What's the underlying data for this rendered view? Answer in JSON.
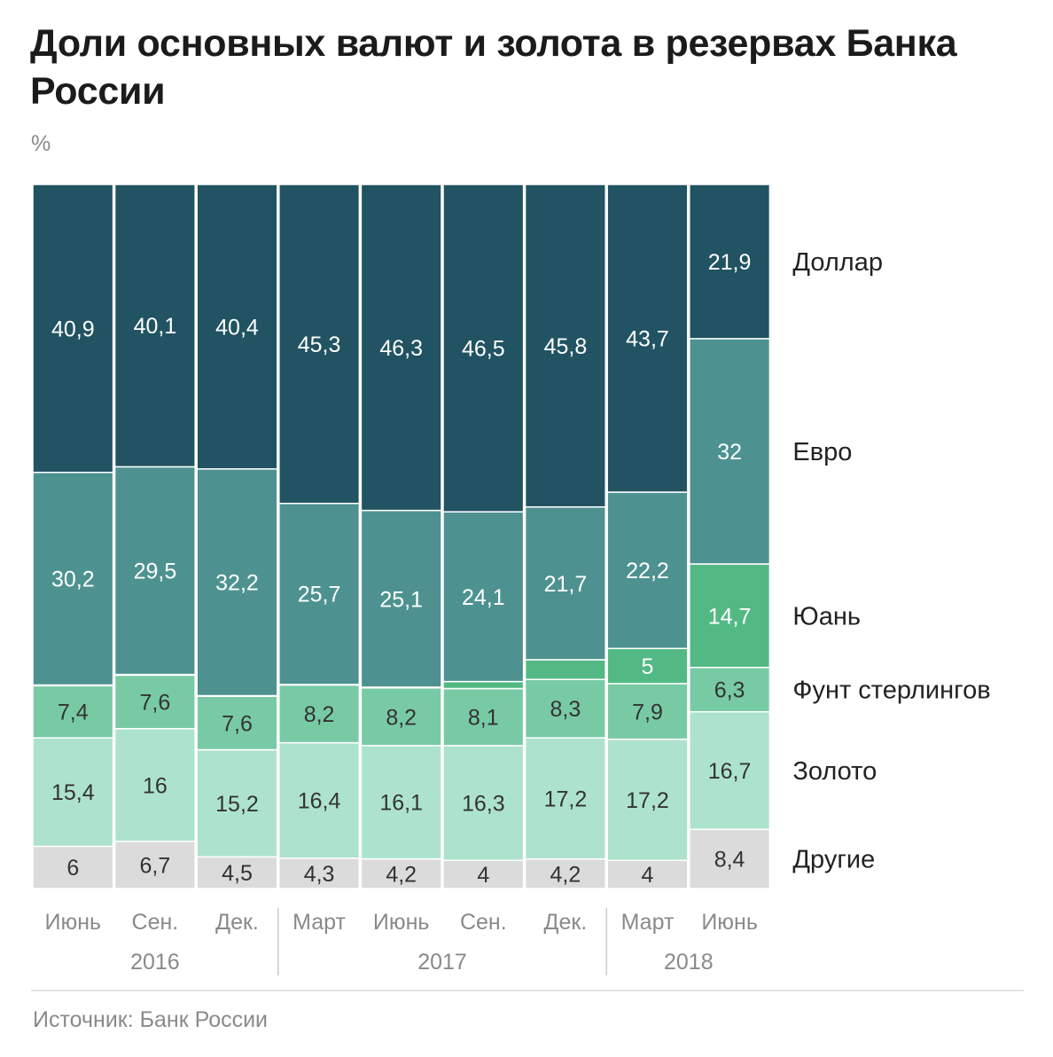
{
  "title": "Доли основных валют и золота в резервах Банка России",
  "unit": "%",
  "source": "Источник: Банк России",
  "colors": {
    "Доллар": "#215362",
    "Евро": "#4d9290",
    "Юань": "#52b985",
    "Фунт стерлингов": "#78caa5",
    "Золото": "#ade3cd",
    "Другие": "#dbdbdb",
    "label_dark": "#ffffff",
    "label_light": "#333333",
    "axis_text": "#8a8a8a",
    "separator": "#cccccc"
  },
  "chart_data": {
    "type": "bar",
    "stacked": true,
    "title": "Доли основных валют и золота в резервах Банка России",
    "ylabel": "%",
    "ylim": [
      0,
      100
    ],
    "categories": [
      "Июнь",
      "Сен.",
      "Дек.",
      "Март",
      "Июнь",
      "Сен.",
      "Дек.",
      "Март",
      "Июнь"
    ],
    "year_groups": [
      {
        "label": "2016",
        "start": 0,
        "end": 2
      },
      {
        "label": "2017",
        "start": 3,
        "end": 6
      },
      {
        "label": "2018",
        "start": 7,
        "end": 8
      }
    ],
    "series": [
      {
        "name": "Другие",
        "values": [
          6,
          6.7,
          4.5,
          4.3,
          4.2,
          4,
          4.2,
          4,
          8.4
        ],
        "labels": [
          "6",
          "6,7",
          "4,5",
          "4,3",
          "4,2",
          "4",
          "4,2",
          "4",
          "8,4"
        ]
      },
      {
        "name": "Золото",
        "values": [
          15.4,
          16,
          15.2,
          16.4,
          16.1,
          16.3,
          17.2,
          17.2,
          16.7
        ],
        "labels": [
          "15,4",
          "16",
          "15,2",
          "16,4",
          "16,1",
          "16,3",
          "17,2",
          "17,2",
          "16,7"
        ]
      },
      {
        "name": "Фунт стерлингов",
        "values": [
          7.4,
          7.6,
          7.6,
          8.2,
          8.2,
          8.1,
          8.3,
          7.9,
          6.3
        ],
        "labels": [
          "7,4",
          "7,6",
          "7,6",
          "8,2",
          "8,2",
          "8,1",
          "8,3",
          "7,9",
          "6,3"
        ]
      },
      {
        "name": "Юань",
        "values": [
          0.1,
          0.1,
          0.1,
          0.1,
          0.1,
          1.0,
          2.8,
          5,
          14.7
        ],
        "labels": [
          "",
          "",
          "",
          "",
          "",
          "",
          "",
          "5",
          "14,7"
        ]
      },
      {
        "name": "Евро",
        "values": [
          30.2,
          29.5,
          32.2,
          25.7,
          25.1,
          24.1,
          21.7,
          22.2,
          32
        ],
        "labels": [
          "30,2",
          "29,5",
          "32,2",
          "25,7",
          "25,1",
          "24,1",
          "21,7",
          "22,2",
          "32"
        ]
      },
      {
        "name": "Доллар",
        "values": [
          40.9,
          40.1,
          40.4,
          45.3,
          46.3,
          46.5,
          45.8,
          43.7,
          21.9
        ],
        "labels": [
          "40,9",
          "40,1",
          "40,4",
          "45,3",
          "46,3",
          "46,5",
          "45,8",
          "43,7",
          "21,9"
        ]
      }
    ],
    "legend": [
      {
        "name": "Доллар",
        "label": "Доллар"
      },
      {
        "name": "Евро",
        "label": "Евро"
      },
      {
        "name": "Юань",
        "label": "Юань"
      },
      {
        "name": "Фунт стерлингов",
        "label": "Фунт стерлингов"
      },
      {
        "name": "Золото",
        "label": "Золото"
      },
      {
        "name": "Другие",
        "label": "Другие"
      }
    ],
    "legend_position": "right"
  }
}
